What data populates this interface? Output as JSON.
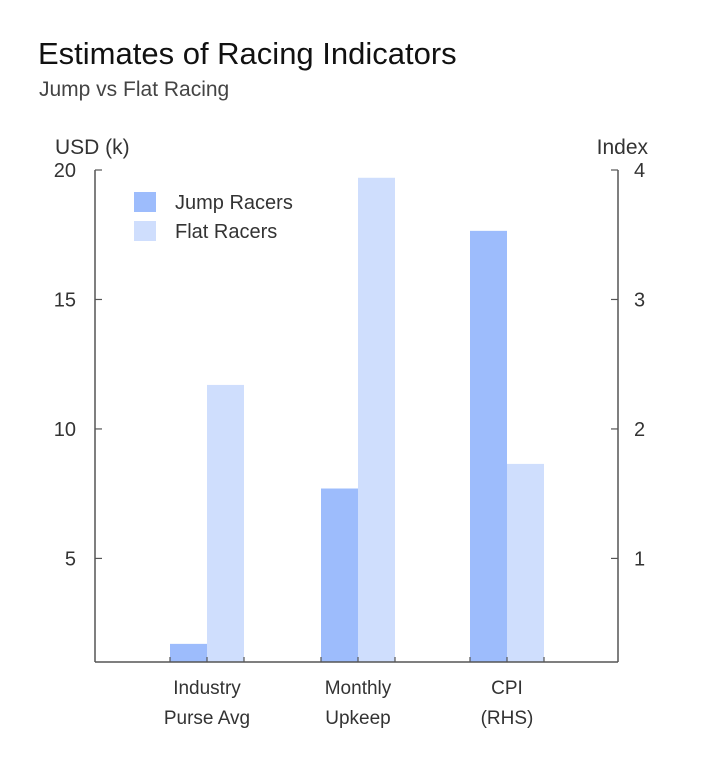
{
  "title": "Estimates of Racing Indicators",
  "subtitle": "Jump vs Flat Racing",
  "chart_data": {
    "type": "bar",
    "categories": [
      [
        "Industry",
        "Purse Avg"
      ],
      [
        "Monthly",
        "Upkeep"
      ],
      [
        "CPI",
        "(RHS)"
      ]
    ],
    "series": [
      {
        "name": "Jump Racers",
        "color": "#9dbcfc",
        "values": [
          1.7,
          7.7,
          3.53
        ]
      },
      {
        "name": "Flat Racers",
        "color": "#cfdefd",
        "values": [
          11.7,
          19.7,
          1.73
        ]
      }
    ],
    "category_axis": [
      "left",
      "left",
      "right"
    ],
    "left_axis": {
      "label": "USD (k)",
      "ylim": [
        1.0,
        20.0
      ],
      "ticks": [
        5,
        10,
        15,
        20
      ]
    },
    "right_axis": {
      "label": "Index",
      "ylim": [
        0.2,
        4.0
      ],
      "ticks": [
        1,
        2,
        3,
        4
      ]
    },
    "legend_position": "top-left",
    "grid": false
  }
}
